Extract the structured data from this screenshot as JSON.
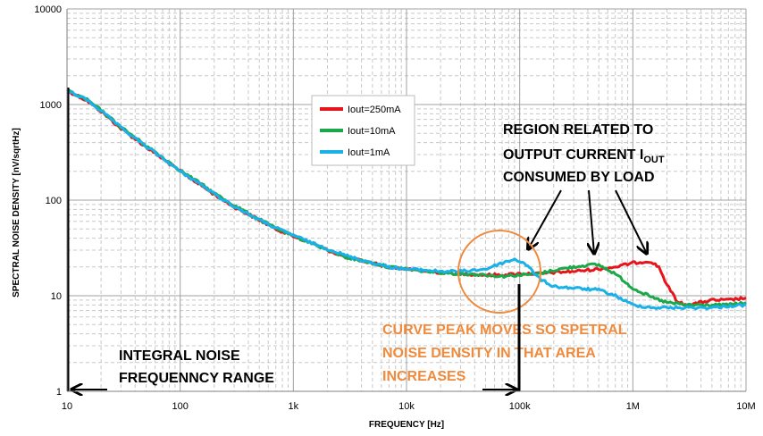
{
  "chart_data": {
    "type": "line",
    "xlabel": "FREQUENCY  [Hz]",
    "ylabel": "SPECTRAL NOISE DENSITY  [nV/sqrtHz]",
    "xscale": "log",
    "yscale": "log",
    "xlim": [
      10,
      10000000
    ],
    "ylim": [
      1,
      10000
    ],
    "x_tick_labels": [
      "10",
      "100",
      "1k",
      "10k",
      "100k",
      "1M",
      "10M"
    ],
    "y_tick_labels": [
      "1",
      "10",
      "100",
      "1000",
      "10000"
    ],
    "grid": true,
    "legend_position": "upper-center",
    "series": [
      {
        "name": "Iout=250mA",
        "color": "#e8141b",
        "points": [
          [
            10,
            1400
          ],
          [
            15,
            1100
          ],
          [
            20,
            850
          ],
          [
            30,
            560
          ],
          [
            50,
            360
          ],
          [
            70,
            270
          ],
          [
            100,
            200
          ],
          [
            150,
            145
          ],
          [
            200,
            115
          ],
          [
            300,
            85
          ],
          [
            500,
            62
          ],
          [
            700,
            50
          ],
          [
            1000,
            42
          ],
          [
            1500,
            35
          ],
          [
            2000,
            30
          ],
          [
            3000,
            25
          ],
          [
            5000,
            22
          ],
          [
            7000,
            20
          ],
          [
            10000,
            19
          ],
          [
            15000,
            18
          ],
          [
            20000,
            17.5
          ],
          [
            30000,
            17
          ],
          [
            50000,
            16.5
          ],
          [
            70000,
            16.5
          ],
          [
            100000,
            17
          ],
          [
            150000,
            17
          ],
          [
            200000,
            17.5
          ],
          [
            300000,
            18
          ],
          [
            500000,
            19
          ],
          [
            700000,
            20
          ],
          [
            1000000,
            22
          ],
          [
            1400000,
            23
          ],
          [
            1700000,
            20
          ],
          [
            2000000,
            13
          ],
          [
            2500000,
            8.5
          ],
          [
            3000000,
            8
          ],
          [
            4000000,
            8.5
          ],
          [
            5000000,
            9
          ],
          [
            7000000,
            9
          ],
          [
            10000000,
            9.5
          ]
        ]
      },
      {
        "name": "Iout=10mA",
        "color": "#1ba84a",
        "points": [
          [
            10,
            1400
          ],
          [
            15,
            1120
          ],
          [
            20,
            870
          ],
          [
            30,
            580
          ],
          [
            50,
            370
          ],
          [
            70,
            280
          ],
          [
            100,
            205
          ],
          [
            150,
            150
          ],
          [
            200,
            118
          ],
          [
            300,
            88
          ],
          [
            500,
            63
          ],
          [
            700,
            51
          ],
          [
            1000,
            42
          ],
          [
            1500,
            35
          ],
          [
            2000,
            30
          ],
          [
            3000,
            25
          ],
          [
            5000,
            22
          ],
          [
            7000,
            20
          ],
          [
            10000,
            19
          ],
          [
            15000,
            18
          ],
          [
            20000,
            17.5
          ],
          [
            30000,
            17
          ],
          [
            50000,
            16.5
          ],
          [
            70000,
            16
          ],
          [
            100000,
            16.5
          ],
          [
            150000,
            17
          ],
          [
            200000,
            18.5
          ],
          [
            300000,
            20
          ],
          [
            400000,
            21
          ],
          [
            500000,
            21
          ],
          [
            700000,
            17
          ],
          [
            1000000,
            12
          ],
          [
            1500000,
            9.5
          ],
          [
            2000000,
            8.5
          ],
          [
            3000000,
            8
          ],
          [
            5000000,
            8
          ],
          [
            7000000,
            8
          ],
          [
            10000000,
            8.5
          ]
        ]
      },
      {
        "name": "Iout=1mA",
        "color": "#1ab0e8",
        "points": [
          [
            10,
            1400
          ],
          [
            15,
            1120
          ],
          [
            20,
            860
          ],
          [
            30,
            570
          ],
          [
            50,
            365
          ],
          [
            70,
            275
          ],
          [
            100,
            200
          ],
          [
            150,
            148
          ],
          [
            200,
            116
          ],
          [
            300,
            86
          ],
          [
            500,
            62
          ],
          [
            700,
            51
          ],
          [
            1000,
            43
          ],
          [
            1500,
            35
          ],
          [
            2000,
            31
          ],
          [
            3000,
            26
          ],
          [
            5000,
            22
          ],
          [
            7000,
            20
          ],
          [
            10000,
            19
          ],
          [
            15000,
            18.5
          ],
          [
            20000,
            18
          ],
          [
            30000,
            18
          ],
          [
            50000,
            19
          ],
          [
            70000,
            22
          ],
          [
            90000,
            24
          ],
          [
            110000,
            22
          ],
          [
            130000,
            18
          ],
          [
            150000,
            15
          ],
          [
            200000,
            12.5
          ],
          [
            300000,
            12
          ],
          [
            500000,
            11.5
          ],
          [
            700000,
            10
          ],
          [
            1000000,
            8
          ],
          [
            1500000,
            7.5
          ],
          [
            2000000,
            7.5
          ],
          [
            3000000,
            7.5
          ],
          [
            5000000,
            7.5
          ],
          [
            7000000,
            7.8
          ],
          [
            10000000,
            8
          ]
        ]
      }
    ],
    "annotations": {
      "region_lines": [
        "REGION RELATED TO",
        "OUTPUT CURRENT I",
        "OUT",
        "CONSUMED BY LOAD"
      ],
      "peak_lines": [
        "CURVE PEAK MOVES SO SPETRAL",
        "NOISE DENSITY IN THAT AREA",
        "INCREASES"
      ],
      "integral_lines": [
        "INTEGRAL NOISE",
        "FREQUENNCY RANGE"
      ],
      "arrow_color": "#000000",
      "circle_color": "#f08a3c",
      "peak_text_color": "#f08a3c"
    }
  }
}
